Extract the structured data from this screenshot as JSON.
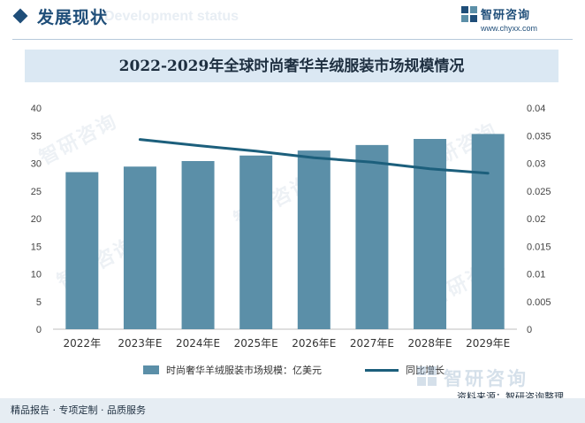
{
  "header": {
    "section_title": "发展现状",
    "section_ghost": "Development status",
    "logo_name": "智研咨询",
    "logo_url": "www.chyxx.com"
  },
  "colors": {
    "bar": "#5b8fa8",
    "line": "#1c5f7c",
    "brand": "#1f4e79"
  },
  "chart_data": {
    "type": "bar",
    "title": "2022-2029年全球时尚奢华羊绒服装市场规模情况",
    "categories": [
      "2022年",
      "2023年E",
      "2024年E",
      "2025年E",
      "2026年E",
      "2027年E",
      "2028年E",
      "2029年E"
    ],
    "series": [
      {
        "name": "时尚奢华羊绒服装市场规模：亿美元",
        "type": "bar",
        "axis": "left",
        "values": [
          28.4,
          29.4,
          30.4,
          31.4,
          32.3,
          33.3,
          34.4,
          35.3
        ]
      },
      {
        "name": "同比增长",
        "type": "line",
        "axis": "right",
        "values": [
          null,
          0.0343,
          0.0332,
          0.0322,
          0.031,
          0.0302,
          0.029,
          0.0282
        ]
      }
    ],
    "ylim": [
      0,
      40
    ],
    "y_ticks": [
      "0",
      "5",
      "10",
      "15",
      "20",
      "25",
      "30",
      "35",
      "40"
    ],
    "y2lim": [
      0,
      0.04
    ],
    "y2_ticks": [
      "0",
      "0.005",
      "0.01",
      "0.015",
      "0.02",
      "0.025",
      "0.03",
      "0.035",
      "0.04"
    ],
    "grid": false,
    "legend_position": "bottom"
  },
  "source": "资料来源：智研咨询整理",
  "watermark": "智研咨询",
  "footer": "精品报告 · 专项定制 · 品质服务"
}
